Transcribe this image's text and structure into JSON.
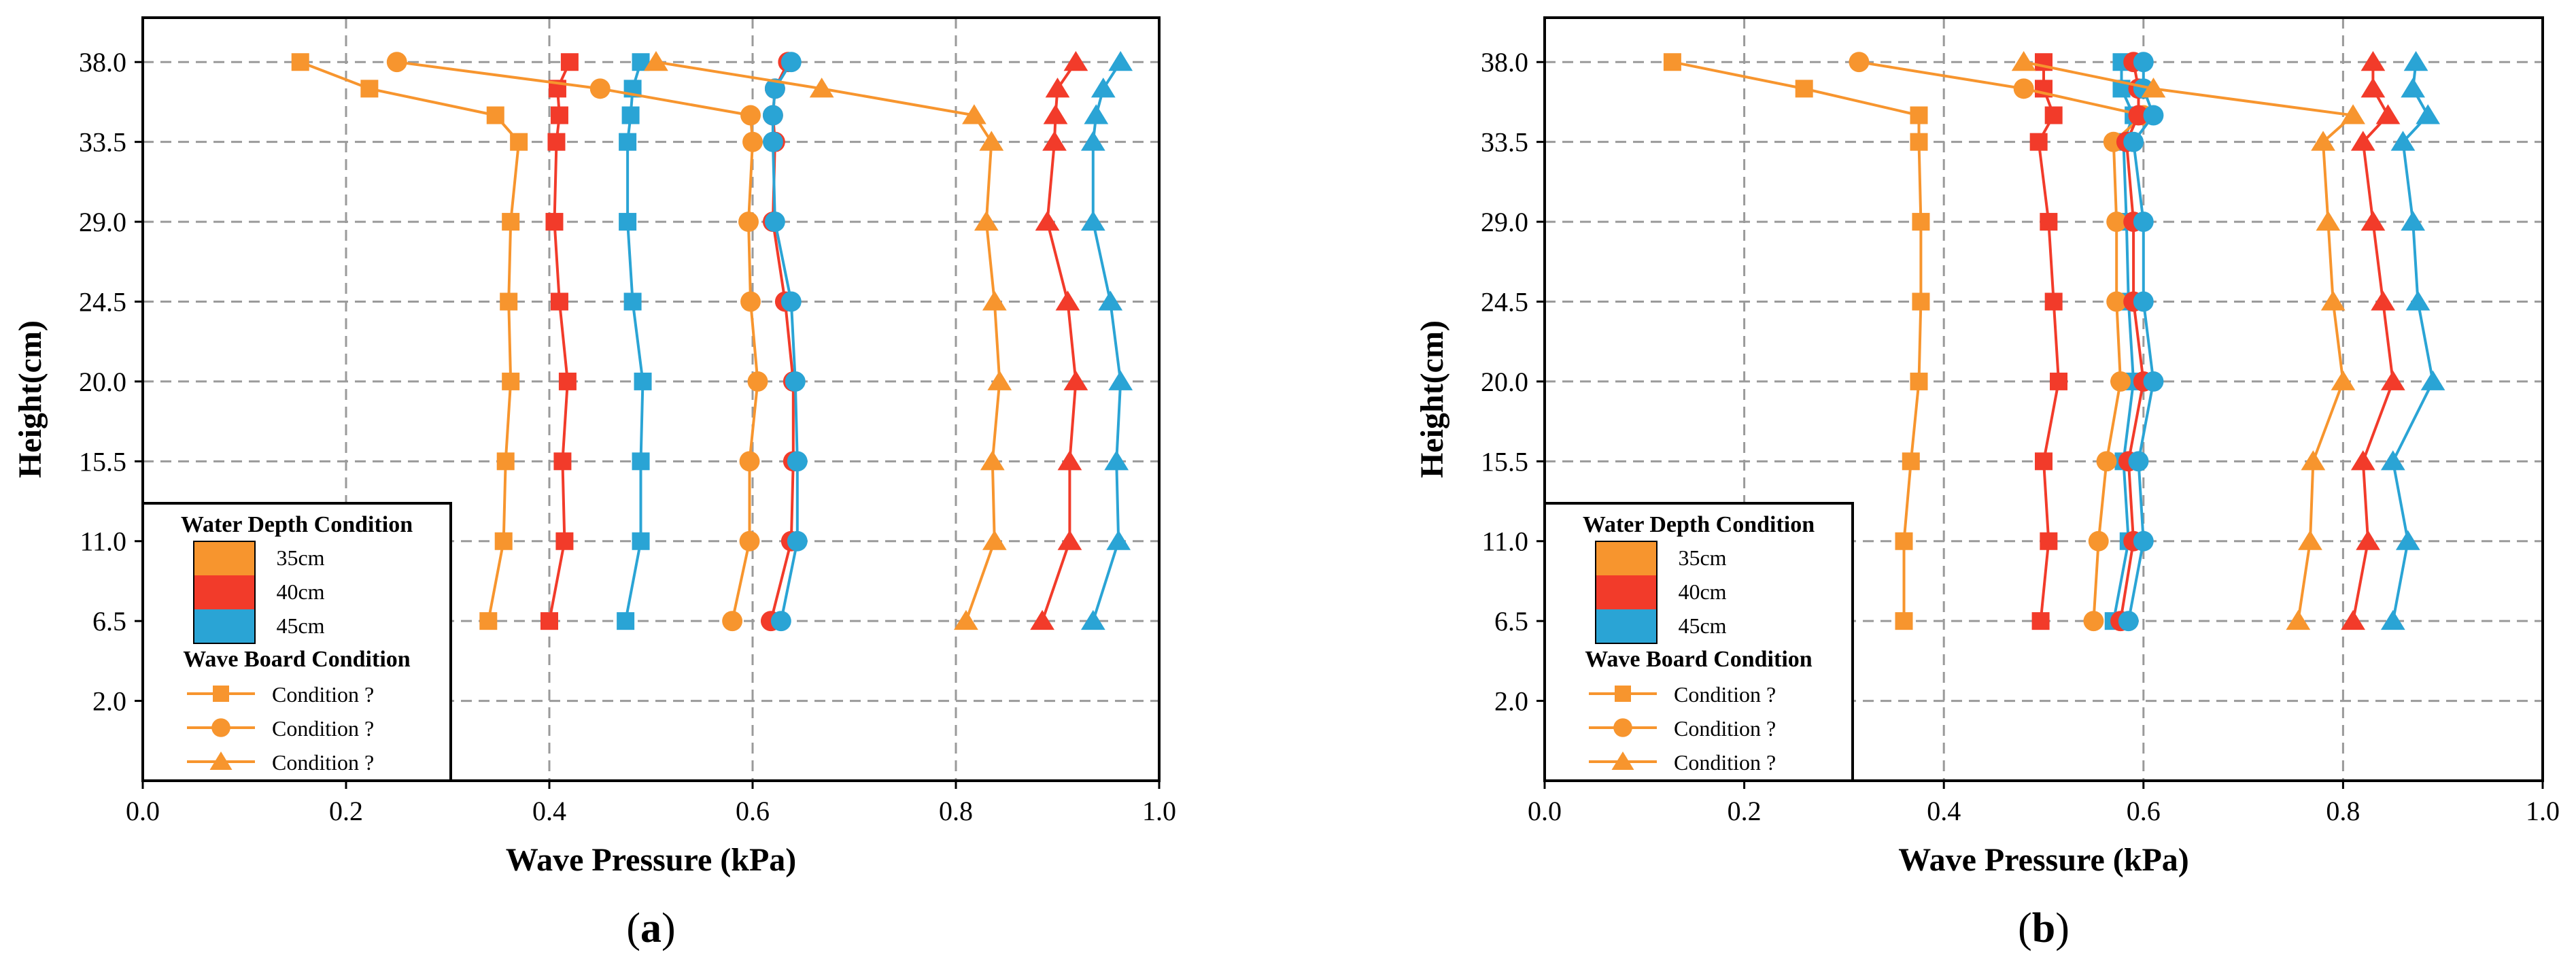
{
  "chart_data": [
    {
      "type": "line",
      "panel_label": "a",
      "xlabel": "Wave Pressure (kPa)",
      "ylabel": "Height(cm)",
      "xlim": [
        0,
        1.0
      ],
      "ylim": [
        -2.5,
        40.5
      ],
      "x_ticks": [
        "0.0",
        "0.2",
        "0.4",
        "0.6",
        "0.8",
        "1.0"
      ],
      "y_ticks": [
        "2.0",
        "6.5",
        "11.0",
        "15.5",
        "20.0",
        "24.5",
        "29.0",
        "33.5",
        "38.0"
      ],
      "y_tick_values": [
        2.0,
        6.5,
        11.0,
        15.5,
        20.0,
        24.5,
        29.0,
        33.5,
        38.0
      ],
      "grid": true,
      "legend": {
        "position": "bottom-left",
        "depth_title": "Water Depth Condition",
        "depth_items": [
          {
            "label": "35cm",
            "color": "#F7952E"
          },
          {
            "label": "40cm",
            "color": "#F23B2A"
          },
          {
            "label": "45cm",
            "color": "#2AA4D5"
          }
        ],
        "board_title": "Wave Board Condition",
        "board_items": [
          {
            "label": "Condition ?",
            "marker": "square"
          },
          {
            "label": "Condition ?",
            "marker": "circle"
          },
          {
            "label": "Condition ?",
            "marker": "triangle"
          }
        ]
      },
      "series": [
        {
          "name": "35cm Condition ? (square)",
          "depth": "35cm",
          "marker": "square",
          "color": "#F7952E",
          "y": [
            6.5,
            11.0,
            15.5,
            20.0,
            24.5,
            29.0,
            33.5,
            35.0,
            36.5,
            38.0
          ],
          "x": [
            0.34,
            0.355,
            0.357,
            0.362,
            0.36,
            0.362,
            0.37,
            0.347,
            0.223,
            0.155
          ]
        },
        {
          "name": "40cm Condition ? (square)",
          "depth": "40cm",
          "marker": "square",
          "color": "#F23B2A",
          "y": [
            6.5,
            11.0,
            15.5,
            20.0,
            24.5,
            29.0,
            33.5,
            35.0,
            36.5,
            38.0
          ],
          "x": [
            0.4,
            0.415,
            0.413,
            0.418,
            0.41,
            0.405,
            0.407,
            0.41,
            0.408,
            0.42
          ]
        },
        {
          "name": "45cm Condition ? (square)",
          "depth": "45cm",
          "marker": "square",
          "color": "#2AA4D5",
          "y": [
            6.5,
            11.0,
            15.5,
            20.0,
            24.5,
            29.0,
            33.5,
            35.0,
            36.5,
            38.0
          ],
          "x": [
            0.475,
            0.49,
            0.49,
            0.492,
            0.482,
            0.477,
            0.477,
            0.48,
            0.482,
            0.49
          ]
        },
        {
          "name": "35cm Condition ? (circle)",
          "depth": "35cm",
          "marker": "circle",
          "color": "#F7952E",
          "y": [
            6.5,
            11.0,
            15.5,
            20.0,
            24.5,
            29.0,
            33.5,
            35.0,
            36.5,
            38.0
          ],
          "x": [
            0.58,
            0.597,
            0.597,
            0.605,
            0.598,
            0.596,
            0.6,
            0.598,
            0.45,
            0.25
          ]
        },
        {
          "name": "40cm Condition ? (circle)",
          "depth": "40cm",
          "marker": "circle",
          "color": "#F23B2A",
          "y": [
            6.5,
            11.0,
            15.5,
            20.0,
            24.5,
            29.0,
            33.5,
            35.0,
            36.5,
            38.0
          ],
          "x": [
            0.618,
            0.638,
            0.64,
            0.64,
            0.632,
            0.62,
            0.622,
            0.62,
            0.622,
            0.635
          ]
        },
        {
          "name": "45cm Condition ? (circle)",
          "depth": "45cm",
          "marker": "circle",
          "color": "#2AA4D5",
          "y": [
            6.5,
            11.0,
            15.5,
            20.0,
            24.5,
            29.0,
            33.5,
            35.0,
            36.5,
            38.0
          ],
          "x": [
            0.628,
            0.644,
            0.644,
            0.642,
            0.638,
            0.622,
            0.62,
            0.62,
            0.622,
            0.638
          ]
        },
        {
          "name": "35cm Condition ? (triangle)",
          "depth": "35cm",
          "marker": "triangle",
          "color": "#F7952E",
          "y": [
            6.5,
            11.0,
            15.5,
            20.0,
            24.5,
            29.0,
            33.5,
            35.0,
            36.5,
            38.0
          ],
          "x": [
            0.81,
            0.838,
            0.836,
            0.843,
            0.838,
            0.83,
            0.835,
            0.818,
            0.668,
            0.505
          ]
        },
        {
          "name": "40cm Condition ? (triangle)",
          "depth": "40cm",
          "marker": "triangle",
          "color": "#F23B2A",
          "y": [
            6.5,
            11.0,
            15.5,
            20.0,
            24.5,
            29.0,
            33.5,
            35.0,
            36.5,
            38.0
          ],
          "x": [
            0.885,
            0.912,
            0.912,
            0.918,
            0.91,
            0.89,
            0.897,
            0.898,
            0.9,
            0.918
          ]
        },
        {
          "name": "45cm Condition ? (triangle)",
          "depth": "45cm",
          "marker": "triangle",
          "color": "#2AA4D5",
          "y": [
            6.5,
            11.0,
            15.5,
            20.0,
            24.5,
            29.0,
            33.5,
            35.0,
            36.5,
            38.0
          ],
          "x": [
            0.935,
            0.96,
            0.958,
            0.962,
            0.952,
            0.935,
            0.935,
            0.938,
            0.945,
            0.962
          ]
        }
      ]
    },
    {
      "type": "line",
      "panel_label": "b",
      "xlabel": "Wave Pressure (kPa)",
      "ylabel": "Height(cm)",
      "xlim": [
        0,
        1.0
      ],
      "ylim": [
        -2.5,
        40.5
      ],
      "x_ticks": [
        "0.0",
        "0.2",
        "0.4",
        "0.6",
        "0.8",
        "1.0"
      ],
      "y_ticks": [
        "2.0",
        "6.5",
        "11.0",
        "15.5",
        "20.0",
        "24.5",
        "29.0",
        "33.5",
        "38.0"
      ],
      "y_tick_values": [
        2.0,
        6.5,
        11.0,
        15.5,
        20.0,
        24.5,
        29.0,
        33.5,
        38.0
      ],
      "grid": true,
      "legend": {
        "position": "bottom-left",
        "depth_title": "Water Depth Condition",
        "depth_items": [
          {
            "label": "35cm",
            "color": "#F7952E"
          },
          {
            "label": "40cm",
            "color": "#F23B2A"
          },
          {
            "label": "45cm",
            "color": "#2AA4D5"
          }
        ],
        "board_title": "Wave Board Condition",
        "board_items": [
          {
            "label": "Condition ?",
            "marker": "square"
          },
          {
            "label": "Condition ?",
            "marker": "circle"
          },
          {
            "label": "Condition ?",
            "marker": "triangle"
          }
        ]
      },
      "series": [
        {
          "name": "35cm Condition ? (square)",
          "depth": "35cm",
          "marker": "square",
          "color": "#F7952E",
          "y": [
            6.5,
            11.0,
            15.5,
            20.0,
            24.5,
            29.0,
            33.5,
            35.0,
            36.5,
            38.0
          ],
          "x": [
            0.36,
            0.36,
            0.367,
            0.375,
            0.377,
            0.377,
            0.375,
            0.375,
            0.26,
            0.128
          ]
        },
        {
          "name": "40cm Condition ? (square)",
          "depth": "40cm",
          "marker": "square",
          "color": "#F23B2A",
          "y": [
            6.5,
            11.0,
            15.5,
            20.0,
            24.5,
            29.0,
            33.5,
            35.0,
            36.5,
            38.0
          ],
          "x": [
            0.497,
            0.505,
            0.5,
            0.515,
            0.51,
            0.505,
            0.495,
            0.51,
            0.5,
            0.5
          ]
        },
        {
          "name": "45cm Condition ? (square)",
          "depth": "45cm",
          "marker": "square",
          "color": "#2AA4D5",
          "y": [
            6.5,
            11.0,
            15.5,
            20.0,
            24.5,
            29.0,
            33.5,
            35.0,
            36.5,
            38.0
          ],
          "x": [
            0.57,
            0.585,
            0.58,
            0.59,
            0.585,
            0.583,
            0.58,
            0.59,
            0.578,
            0.578
          ]
        },
        {
          "name": "35cm Condition ? (circle)",
          "depth": "35cm",
          "marker": "circle",
          "color": "#F7952E",
          "y": [
            6.5,
            11.0,
            15.5,
            20.0,
            24.5,
            29.0,
            33.5,
            35.0,
            36.5,
            38.0
          ],
          "x": [
            0.55,
            0.555,
            0.563,
            0.577,
            0.573,
            0.573,
            0.57,
            0.6,
            0.48,
            0.315
          ]
        },
        {
          "name": "40cm Condition ? (circle)",
          "depth": "40cm",
          "marker": "circle",
          "color": "#F23B2A",
          "y": [
            6.5,
            11.0,
            15.5,
            20.0,
            24.5,
            29.0,
            33.5,
            35.0,
            36.5,
            38.0
          ],
          "x": [
            0.577,
            0.59,
            0.585,
            0.6,
            0.59,
            0.59,
            0.583,
            0.595,
            0.595,
            0.59
          ]
        },
        {
          "name": "45cm Condition ? (circle)",
          "depth": "45cm",
          "marker": "circle",
          "color": "#2AA4D5",
          "y": [
            6.5,
            11.0,
            15.5,
            20.0,
            24.5,
            29.0,
            33.5,
            35.0,
            36.5,
            38.0
          ],
          "x": [
            0.585,
            0.6,
            0.595,
            0.61,
            0.6,
            0.6,
            0.59,
            0.61,
            0.6,
            0.6
          ]
        },
        {
          "name": "35cm Condition ? (triangle)",
          "depth": "35cm",
          "marker": "triangle",
          "color": "#F7952E",
          "y": [
            6.5,
            11.0,
            15.5,
            20.0,
            24.5,
            29.0,
            33.5,
            35.0,
            36.5,
            38.0
          ],
          "x": [
            0.755,
            0.767,
            0.77,
            0.8,
            0.79,
            0.785,
            0.78,
            0.81,
            0.61,
            0.48
          ]
        },
        {
          "name": "40cm Condition ? (triangle)",
          "depth": "40cm",
          "marker": "triangle",
          "color": "#F23B2A",
          "y": [
            6.5,
            11.0,
            15.5,
            20.0,
            24.5,
            29.0,
            33.5,
            35.0,
            36.5,
            38.0
          ],
          "x": [
            0.81,
            0.825,
            0.82,
            0.85,
            0.84,
            0.83,
            0.82,
            0.845,
            0.83,
            0.83
          ]
        },
        {
          "name": "45cm Condition ? (triangle)",
          "depth": "45cm",
          "marker": "triangle",
          "color": "#2AA4D5",
          "y": [
            6.5,
            11.0,
            15.5,
            20.0,
            24.5,
            29.0,
            33.5,
            35.0,
            36.5,
            38.0
          ],
          "x": [
            0.85,
            0.865,
            0.85,
            0.89,
            0.875,
            0.87,
            0.86,
            0.885,
            0.87,
            0.873
          ]
        }
      ]
    }
  ]
}
